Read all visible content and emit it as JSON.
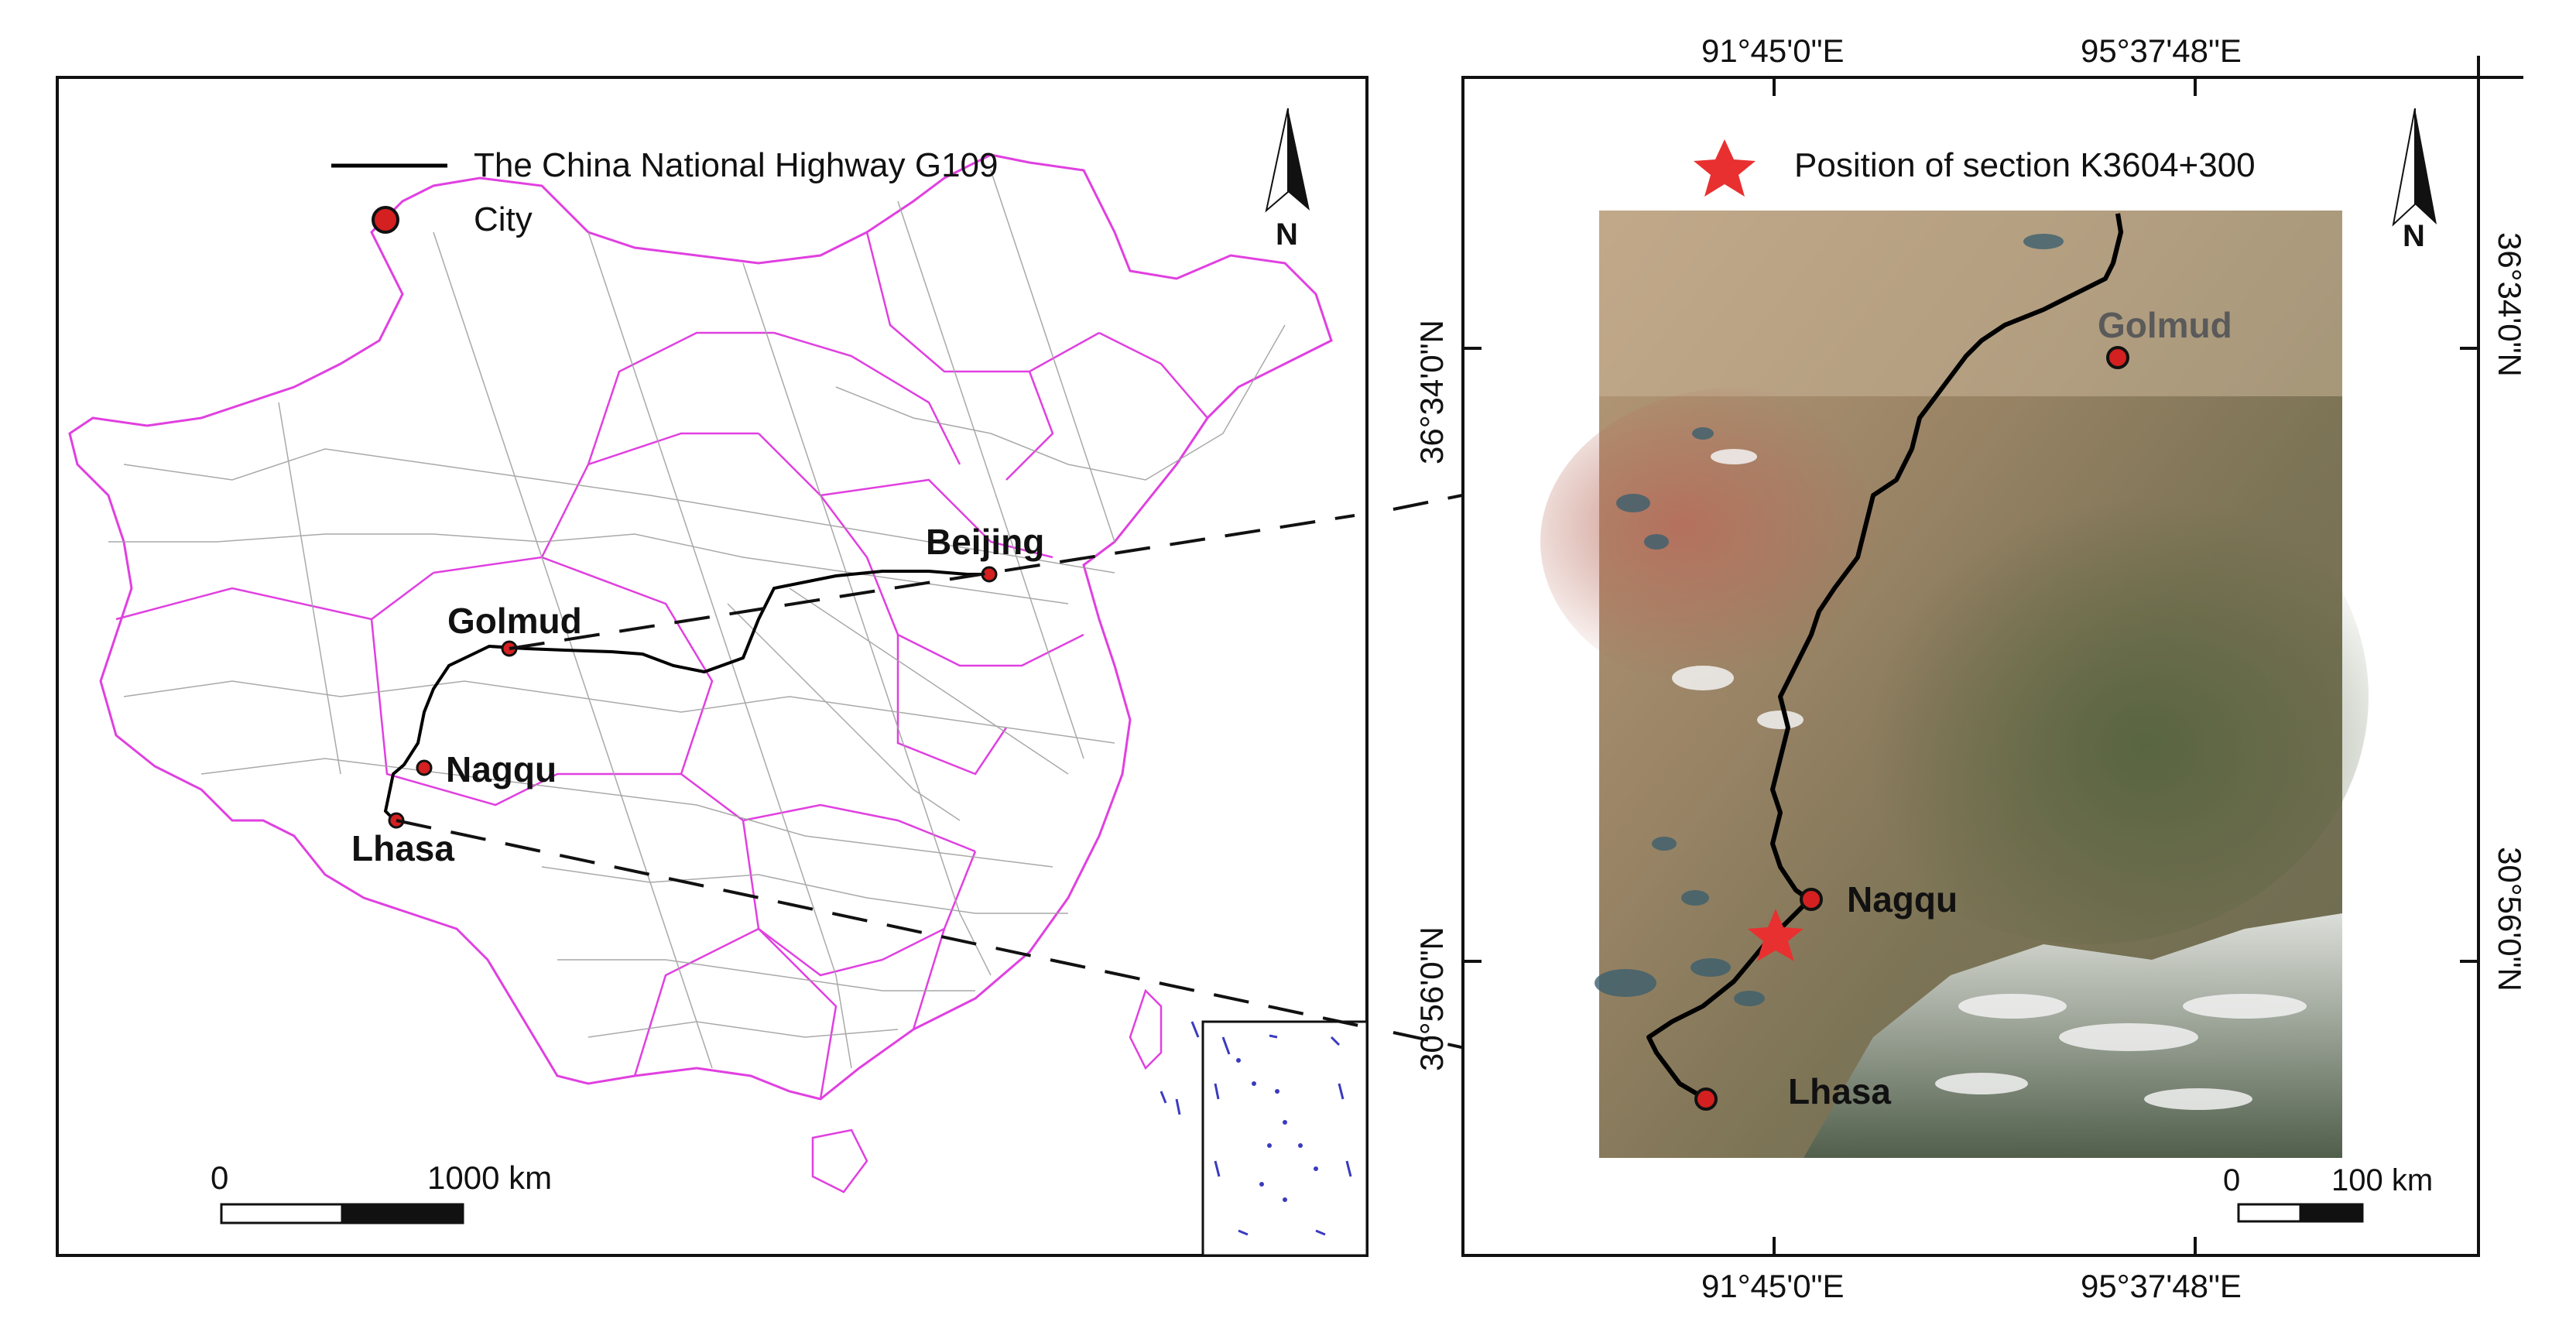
{
  "left_map": {
    "legend": {
      "highway_label": "The China National Highway G109",
      "city_label": "City"
    },
    "north_label": "N",
    "cities": [
      {
        "name": "Beijing"
      },
      {
        "name": "Golmud"
      },
      {
        "name": "Nagqu"
      },
      {
        "name": "Lhasa"
      }
    ],
    "scale": {
      "start": "0",
      "end": "1000 km"
    }
  },
  "right_map": {
    "legend": {
      "star_label": "Position of section K3604+300"
    },
    "north_label": "N",
    "cities": [
      {
        "name": "Golmud"
      },
      {
        "name": "Nagqu"
      },
      {
        "name": "Lhasa"
      }
    ],
    "coords": {
      "top_left": "91°45'0\"E",
      "top_right": "95°37'48\"E",
      "bottom_left": "91°45'0\"E",
      "bottom_right": "95°37'48\"E",
      "left_top": "36°34'0\"N",
      "left_bottom": "30°56'0\"N",
      "right_top": "36°34'0\"N",
      "right_bottom": "30°56'0\"N"
    },
    "scale": {
      "start": "0",
      "end": "100 km"
    }
  },
  "colors": {
    "province_border": "#e040e0",
    "county_border": "#a0a0a0",
    "highway": "#000000",
    "city_dot": "#d42020",
    "star": "#e83030"
  }
}
